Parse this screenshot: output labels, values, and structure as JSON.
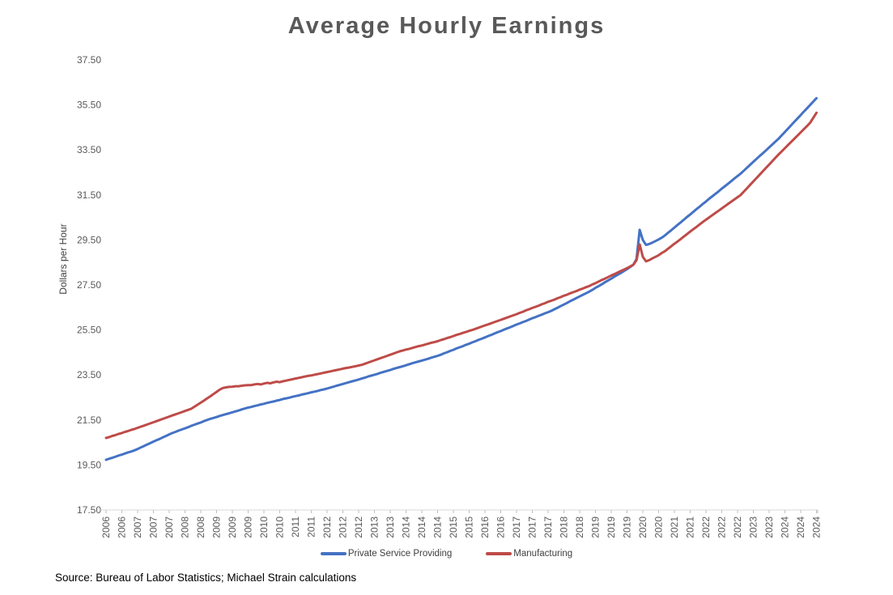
{
  "title": "Average Hourly Earnings",
  "source_note": "Source: Bureau of Labor Statistics; Michael Strain calculations",
  "chart_data": {
    "type": "line",
    "title": "Average Hourly Earnings",
    "xlabel": "",
    "ylabel": "Dollars per Hour",
    "ylim": [
      17.5,
      37.5
    ],
    "y_tick_step": 2.0,
    "y_tick_labels": [
      "37.50",
      "35.50",
      "33.50",
      "31.50",
      "29.50",
      "27.50",
      "25.50",
      "23.50",
      "21.50",
      "19.50",
      "17.50"
    ],
    "grid": false,
    "legend_position": "bottom",
    "frequency": "monthly",
    "x_start": "2006-03",
    "x_end": "2024-12",
    "x_tick_every": 5,
    "x_tick_labels": [
      "2006",
      "2006",
      "2007",
      "2007",
      "2007",
      "2008",
      "2008",
      "2009",
      "2009",
      "2009",
      "2010",
      "2010",
      "2011",
      "2011",
      "2012",
      "2012",
      "2012",
      "2013",
      "2013",
      "2014",
      "2014",
      "2014",
      "2015",
      "2015",
      "2016",
      "2016",
      "2017",
      "2017",
      "2017",
      "2018",
      "2018",
      "2019",
      "2019",
      "2019",
      "2020",
      "2020",
      "2021",
      "2021",
      "2022",
      "2022",
      "2022",
      "2023",
      "2023",
      "2024",
      "2024",
      "2024"
    ],
    "series": [
      {
        "name": "Private Service Providing",
        "color": "#4472C4",
        "values": [
          19.73,
          19.78,
          19.82,
          19.87,
          19.92,
          19.96,
          20.01,
          20.06,
          20.1,
          20.15,
          20.21,
          20.28,
          20.34,
          20.41,
          20.47,
          20.54,
          20.6,
          20.66,
          20.73,
          20.79,
          20.86,
          20.92,
          20.97,
          21.03,
          21.08,
          21.13,
          21.18,
          21.24,
          21.29,
          21.34,
          21.39,
          21.45,
          21.5,
          21.55,
          21.59,
          21.63,
          21.68,
          21.72,
          21.76,
          21.8,
          21.84,
          21.88,
          21.92,
          21.97,
          22.01,
          22.05,
          22.08,
          22.12,
          22.15,
          22.19,
          22.22,
          22.26,
          22.29,
          22.32,
          22.36,
          22.39,
          22.43,
          22.46,
          22.49,
          22.53,
          22.56,
          22.59,
          22.63,
          22.66,
          22.69,
          22.73,
          22.76,
          22.79,
          22.83,
          22.86,
          22.9,
          22.94,
          22.98,
          23.02,
          23.06,
          23.1,
          23.14,
          23.18,
          23.22,
          23.26,
          23.3,
          23.34,
          23.38,
          23.43,
          23.47,
          23.51,
          23.55,
          23.6,
          23.64,
          23.68,
          23.72,
          23.77,
          23.81,
          23.85,
          23.89,
          23.93,
          23.98,
          24.02,
          24.06,
          24.1,
          24.14,
          24.18,
          24.22,
          24.27,
          24.31,
          24.35,
          24.4,
          24.46,
          24.51,
          24.57,
          24.62,
          24.68,
          24.73,
          24.78,
          24.84,
          24.89,
          24.95,
          25.0,
          25.06,
          25.11,
          25.17,
          25.23,
          25.28,
          25.34,
          25.4,
          25.45,
          25.51,
          25.57,
          25.62,
          25.68,
          25.74,
          25.79,
          25.85,
          25.9,
          25.96,
          26.02,
          26.07,
          26.13,
          26.18,
          26.24,
          26.29,
          26.35,
          26.42,
          26.49,
          26.56,
          26.63,
          26.7,
          26.78,
          26.85,
          26.92,
          26.99,
          27.06,
          27.13,
          27.2,
          27.28,
          27.37,
          27.45,
          27.53,
          27.62,
          27.7,
          27.78,
          27.87,
          27.95,
          28.03,
          28.12,
          28.2,
          28.3,
          28.4,
          28.65,
          29.95,
          29.5,
          29.28,
          29.32,
          29.38,
          29.45,
          29.52,
          29.6,
          29.7,
          29.82,
          29.93,
          30.05,
          30.17,
          30.28,
          30.4,
          30.52,
          30.63,
          30.75,
          30.87,
          30.98,
          31.1,
          31.21,
          31.33,
          31.44,
          31.55,
          31.66,
          31.78,
          31.89,
          32.0,
          32.11,
          32.23,
          32.34,
          32.45,
          32.58,
          32.71,
          32.84,
          32.97,
          33.1,
          33.23,
          33.35,
          33.48,
          33.61,
          33.74,
          33.87,
          34.0,
          34.15,
          34.3,
          34.45,
          34.6,
          34.75,
          34.9,
          35.05,
          35.2,
          35.35,
          35.5,
          35.65,
          35.8
        ]
      },
      {
        "name": "Manufacturing",
        "color": "#BE4B48",
        "values": [
          20.7,
          20.74,
          20.79,
          20.83,
          20.88,
          20.92,
          20.97,
          21.01,
          21.06,
          21.1,
          21.15,
          21.2,
          21.25,
          21.3,
          21.35,
          21.4,
          21.45,
          21.5,
          21.55,
          21.6,
          21.65,
          21.7,
          21.75,
          21.8,
          21.85,
          21.9,
          21.95,
          22.0,
          22.09,
          22.18,
          22.27,
          22.36,
          22.46,
          22.55,
          22.65,
          22.75,
          22.85,
          22.92,
          22.95,
          22.97,
          22.98,
          23.0,
          23.0,
          23.02,
          23.04,
          23.05,
          23.05,
          23.08,
          23.1,
          23.08,
          23.12,
          23.15,
          23.13,
          23.17,
          23.2,
          23.18,
          23.22,
          23.25,
          23.28,
          23.31,
          23.34,
          23.37,
          23.4,
          23.43,
          23.46,
          23.48,
          23.51,
          23.54,
          23.57,
          23.6,
          23.63,
          23.66,
          23.69,
          23.72,
          23.75,
          23.78,
          23.81,
          23.83,
          23.86,
          23.89,
          23.92,
          23.95,
          24.0,
          24.05,
          24.1,
          24.15,
          24.2,
          24.25,
          24.3,
          24.35,
          24.4,
          24.45,
          24.5,
          24.55,
          24.59,
          24.63,
          24.66,
          24.7,
          24.74,
          24.78,
          24.81,
          24.85,
          24.89,
          24.93,
          24.96,
          25.0,
          25.05,
          25.09,
          25.14,
          25.18,
          25.23,
          25.28,
          25.32,
          25.37,
          25.41,
          25.46,
          25.5,
          25.55,
          25.6,
          25.65,
          25.7,
          25.75,
          25.8,
          25.85,
          25.9,
          25.95,
          26.0,
          26.05,
          26.1,
          26.15,
          26.2,
          26.26,
          26.31,
          26.37,
          26.42,
          26.48,
          26.53,
          26.58,
          26.64,
          26.69,
          26.75,
          26.8,
          26.85,
          26.91,
          26.96,
          27.02,
          27.07,
          27.13,
          27.18,
          27.23,
          27.29,
          27.34,
          27.4,
          27.45,
          27.52,
          27.58,
          27.65,
          27.72,
          27.78,
          27.85,
          27.92,
          27.98,
          28.05,
          28.12,
          28.18,
          28.25,
          28.32,
          28.4,
          28.6,
          29.3,
          28.75,
          28.55,
          28.6,
          28.68,
          28.75,
          28.82,
          28.92,
          29.0,
          29.11,
          29.22,
          29.33,
          29.43,
          29.54,
          29.65,
          29.76,
          29.87,
          29.98,
          30.08,
          30.19,
          30.3,
          30.4,
          30.5,
          30.6,
          30.7,
          30.8,
          30.9,
          31.0,
          31.1,
          31.2,
          31.3,
          31.4,
          31.5,
          31.65,
          31.8,
          31.95,
          32.1,
          32.25,
          32.4,
          32.55,
          32.7,
          32.85,
          33.0,
          33.15,
          33.3,
          33.44,
          33.58,
          33.72,
          33.86,
          34.0,
          34.14,
          34.28,
          34.42,
          34.56,
          34.71,
          34.93,
          35.15
        ]
      }
    ]
  }
}
